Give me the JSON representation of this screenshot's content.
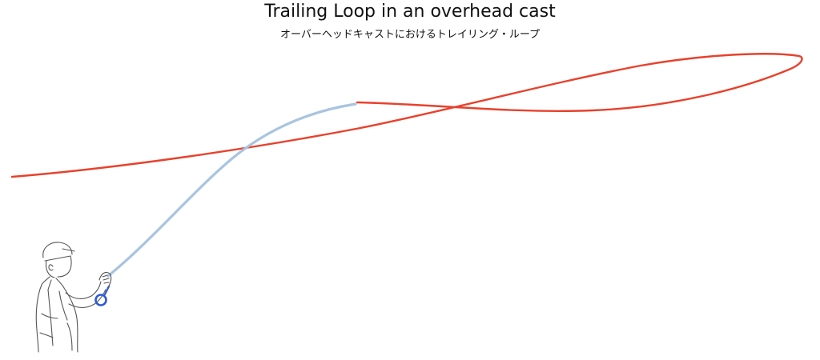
{
  "title": "Trailing Loop in an overhead cast",
  "subtitle": "オーバーヘッドキャストにおけるトレイリング・ループ",
  "colors": {
    "fly_line": "#e8412c",
    "rod": "#a8c4e0",
    "reel": "#2f5bd1",
    "outline": "#555555"
  },
  "icons": {
    "angler": "angler-figure-icon",
    "reel": "reel-icon"
  }
}
